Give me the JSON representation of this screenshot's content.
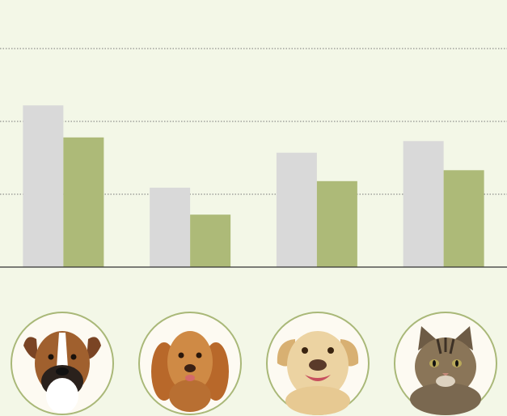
{
  "chart_data": {
    "type": "bar",
    "categories": [
      null,
      null,
      null,
      null
    ],
    "series": [
      {
        "color": "#d9d9d9",
        "values": [
          2.22,
          1.09,
          1.57,
          1.73
        ]
      },
      {
        "color": "#adba78",
        "values": [
          1.78,
          0.72,
          1.18,
          1.33
        ]
      }
    ],
    "ylim": [
      0,
      3
    ],
    "yticks": [
      1,
      2,
      3
    ],
    "grid": true
  }
}
